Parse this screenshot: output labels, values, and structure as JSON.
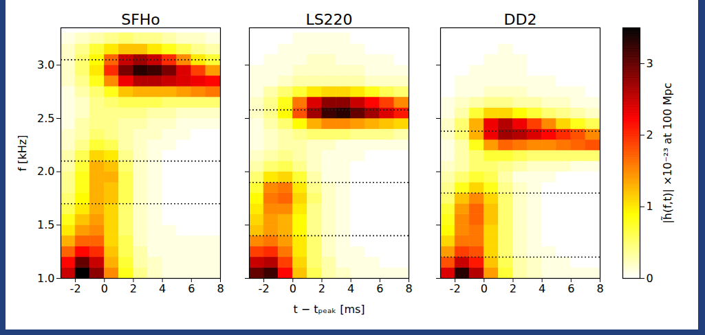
{
  "chart_data": {
    "type": "heatmap",
    "xlabel": "t − tₚₑₐₖ [ms]",
    "ylabel": "f [kHz]",
    "xlim": [
      -3,
      8
    ],
    "xticks": [
      -2,
      0,
      2,
      4,
      6,
      8
    ],
    "ylim": [
      1.0,
      3.35
    ],
    "yticks": [
      {
        "value": 1.0,
        "label": "1.0"
      },
      {
        "value": 1.5,
        "label": "1.5"
      },
      {
        "value": 2.0,
        "label": "2.0"
      },
      {
        "value": 2.5,
        "label": "2.5"
      },
      {
        "value": 3.0,
        "label": "3.0"
      }
    ],
    "line_style": "dotted",
    "x_edges": [
      -3,
      -2,
      -1,
      0,
      1,
      2,
      3,
      4,
      5,
      6,
      7,
      8
    ],
    "y_edges": [
      1.0,
      1.1,
      1.2,
      1.3,
      1.4,
      1.5,
      1.6,
      1.7,
      1.8,
      1.9,
      2.0,
      2.1,
      2.2,
      2.3,
      2.4,
      2.5,
      2.6,
      2.7,
      2.8,
      2.9,
      3.0,
      3.1,
      3.2,
      3.3
    ],
    "colorbar": {
      "label": "|h̃(f,t)| ×10⁻²³ at 100 Mpc",
      "lim": [
        0,
        3.5
      ],
      "ticks": [
        0,
        1,
        2,
        3
      ]
    },
    "panels": [
      {
        "title": "SFHo",
        "dotted_lines": [
          3.05,
          2.1,
          1.7
        ],
        "cells": [
          [
            2.5,
            3.5,
            2.8,
            1.5,
            0.8,
            0.4,
            0.2,
            0.1,
            0.1,
            0.1,
            0.1
          ],
          [
            2.2,
            3.0,
            2.5,
            1.3,
            0.7,
            0.3,
            0.2,
            0.1,
            0.1,
            0.1,
            0.1
          ],
          [
            1.7,
            2.2,
            2.0,
            1.2,
            0.6,
            0.3,
            0.1,
            0.1,
            0.1,
            0.1,
            0.1
          ],
          [
            1.3,
            1.7,
            1.7,
            1.1,
            0.6,
            0.2,
            0.1,
            0.1,
            0.1,
            0.1,
            0.1
          ],
          [
            1.0,
            1.4,
            1.5,
            1.1,
            0.5,
            0.2,
            0.1,
            0.1,
            0,
            0,
            0
          ],
          [
            0.8,
            1.2,
            1.4,
            1.1,
            0.5,
            0.2,
            0.1,
            0,
            0,
            0,
            0
          ],
          [
            0.6,
            1.0,
            1.3,
            1.1,
            0.5,
            0.2,
            0.1,
            0,
            0,
            0,
            0
          ],
          [
            0.5,
            0.9,
            1.3,
            1.2,
            0.6,
            0.2,
            0.1,
            0,
            0,
            0,
            0
          ],
          [
            0.4,
            0.8,
            1.3,
            1.2,
            0.6,
            0.2,
            0.1,
            0,
            0,
            0,
            0
          ],
          [
            0.4,
            0.8,
            1.3,
            1.3,
            0.6,
            0.2,
            0.1,
            0,
            0,
            0,
            0
          ],
          [
            0.3,
            0.7,
            1.3,
            1.2,
            0.5,
            0.2,
            0.1,
            0,
            0,
            0,
            0
          ],
          [
            0.3,
            0.6,
            1.1,
            1.0,
            0.4,
            0.2,
            0.1,
            0,
            0,
            0,
            0
          ],
          [
            0.2,
            0.4,
            0.7,
            0.6,
            0.3,
            0.2,
            0.1,
            0.1,
            0,
            0,
            0
          ],
          [
            0.2,
            0.3,
            0.5,
            0.4,
            0.3,
            0.2,
            0.2,
            0.1,
            0.1,
            0,
            0
          ],
          [
            0.1,
            0.3,
            0.4,
            0.4,
            0.3,
            0.3,
            0.2,
            0.2,
            0.1,
            0.1,
            0.1
          ],
          [
            0.1,
            0.2,
            0.4,
            0.4,
            0.4,
            0.4,
            0.3,
            0.3,
            0.2,
            0.2,
            0.2
          ],
          [
            0.1,
            0.2,
            0.4,
            0.5,
            0.6,
            0.6,
            0.6,
            0.5,
            0.5,
            0.5,
            0.5
          ],
          [
            0.1,
            0.3,
            0.5,
            0.8,
            1.2,
            1.3,
            1.3,
            1.3,
            1.4,
            1.5,
            1.6
          ],
          [
            0.2,
            0.4,
            0.8,
            1.5,
            2.3,
            2.6,
            2.6,
            2.5,
            2.4,
            2.3,
            2.2
          ],
          [
            0.2,
            0.5,
            1.0,
            2.0,
            2.9,
            3.3,
            3.2,
            2.9,
            2.4,
            1.9,
            1.4
          ],
          [
            0.2,
            0.5,
            0.9,
            1.7,
            2.5,
            2.7,
            2.5,
            2.0,
            1.5,
            1.0,
            0.7
          ],
          [
            0.2,
            0.4,
            0.7,
            1.0,
            1.2,
            1.2,
            1.0,
            0.8,
            0.6,
            0.4,
            0.3
          ],
          [
            0.1,
            0.2,
            0.3,
            0.4,
            0.5,
            0.4,
            0.4,
            0.3,
            0.2,
            0.2,
            0.1
          ]
        ]
      },
      {
        "title": "LS220",
        "dotted_lines": [
          2.58,
          1.9,
          1.4
        ],
        "cells": [
          [
            3.0,
            3.2,
            2.2,
            1.2,
            0.6,
            0.3,
            0.2,
            0.1,
            0.1,
            0.1,
            0.1
          ],
          [
            2.5,
            2.6,
            1.9,
            1.1,
            0.5,
            0.3,
            0.1,
            0.1,
            0.1,
            0,
            0
          ],
          [
            1.9,
            2.0,
            1.6,
            1.0,
            0.5,
            0.2,
            0.1,
            0.1,
            0,
            0,
            0
          ],
          [
            1.5,
            1.6,
            1.4,
            1.0,
            0.5,
            0.2,
            0.1,
            0,
            0,
            0,
            0
          ],
          [
            1.2,
            1.4,
            1.3,
            0.9,
            0.4,
            0.2,
            0.1,
            0,
            0,
            0,
            0
          ],
          [
            1.1,
            1.4,
            1.3,
            0.9,
            0.4,
            0.2,
            0.1,
            0,
            0,
            0,
            0
          ],
          [
            1.0,
            1.5,
            1.5,
            1.0,
            0.4,
            0.2,
            0.1,
            0,
            0,
            0,
            0
          ],
          [
            0.9,
            1.6,
            1.7,
            1.1,
            0.5,
            0.2,
            0.1,
            0,
            0,
            0,
            0
          ],
          [
            0.7,
            1.5,
            1.6,
            1.0,
            0.4,
            0.2,
            0.1,
            0,
            0,
            0,
            0
          ],
          [
            0.5,
            1.0,
            1.1,
            0.7,
            0.3,
            0.1,
            0.1,
            0,
            0,
            0,
            0
          ],
          [
            0.3,
            0.5,
            0.6,
            0.4,
            0.2,
            0.1,
            0.1,
            0,
            0,
            0,
            0
          ],
          [
            0.2,
            0.3,
            0.4,
            0.3,
            0.2,
            0.1,
            0.1,
            0.1,
            0,
            0,
            0
          ],
          [
            0.1,
            0.2,
            0.3,
            0.3,
            0.2,
            0.2,
            0.1,
            0.1,
            0.1,
            0.1,
            0.1
          ],
          [
            0.1,
            0.2,
            0.3,
            0.4,
            0.5,
            0.5,
            0.5,
            0.4,
            0.4,
            0.4,
            0.3
          ],
          [
            0.1,
            0.3,
            0.5,
            0.9,
            1.3,
            1.5,
            1.5,
            1.4,
            1.3,
            1.2,
            1.1
          ],
          [
            0.2,
            0.4,
            0.9,
            1.8,
            2.7,
            3.2,
            3.3,
            3.0,
            2.7,
            2.4,
            2.1
          ],
          [
            0.2,
            0.4,
            0.8,
            1.6,
            2.4,
            2.8,
            2.8,
            2.5,
            2.2,
            1.9,
            1.5
          ],
          [
            0.1,
            0.3,
            0.5,
            0.7,
            1.0,
            1.1,
            1.1,
            1.0,
            0.8,
            0.6,
            0.5
          ],
          [
            0.1,
            0.1,
            0.2,
            0.3,
            0.3,
            0.3,
            0.3,
            0.3,
            0.2,
            0.2,
            0.2
          ],
          [
            0.1,
            0.1,
            0.1,
            0.2,
            0.2,
            0.2,
            0.2,
            0.2,
            0.1,
            0.1,
            0.1
          ],
          [
            0,
            0.1,
            0.1,
            0.1,
            0.2,
            0.2,
            0.1,
            0.1,
            0.1,
            0.1,
            0
          ],
          [
            0,
            0,
            0.1,
            0.1,
            0.1,
            0.1,
            0.1,
            0.1,
            0,
            0,
            0
          ],
          [
            0,
            0,
            0,
            0.1,
            0.1,
            0.1,
            0.1,
            0,
            0,
            0,
            0
          ]
        ]
      },
      {
        "title": "DD2",
        "dotted_lines": [
          2.38,
          1.8,
          1.2
        ],
        "cells": [
          [
            2.4,
            3.3,
            2.6,
            1.4,
            0.7,
            0.3,
            0.2,
            0.1,
            0.1,
            0.1,
            0.1
          ],
          [
            1.8,
            2.5,
            2.1,
            1.2,
            0.6,
            0.3,
            0.2,
            0.1,
            0.1,
            0,
            0
          ],
          [
            1.4,
            1.9,
            1.8,
            1.1,
            0.5,
            0.2,
            0.1,
            0.1,
            0,
            0,
            0
          ],
          [
            1.1,
            1.6,
            1.6,
            1.1,
            0.5,
            0.2,
            0.1,
            0,
            0,
            0,
            0
          ],
          [
            0.9,
            1.5,
            1.6,
            1.1,
            0.5,
            0.2,
            0.1,
            0,
            0,
            0,
            0
          ],
          [
            0.8,
            1.5,
            1.7,
            1.2,
            0.5,
            0.2,
            0.1,
            0,
            0,
            0,
            0
          ],
          [
            0.7,
            1.4,
            1.7,
            1.2,
            0.5,
            0.2,
            0.1,
            0,
            0,
            0,
            0
          ],
          [
            0.5,
            1.2,
            1.5,
            1.1,
            0.5,
            0.2,
            0.1,
            0,
            0,
            0,
            0
          ],
          [
            0.4,
            0.8,
            1.1,
            0.8,
            0.4,
            0.2,
            0.1,
            0,
            0,
            0,
            0
          ],
          [
            0.3,
            0.5,
            0.7,
            0.6,
            0.3,
            0.1,
            0.1,
            0.1,
            0,
            0,
            0
          ],
          [
            0.2,
            0.3,
            0.5,
            0.5,
            0.4,
            0.3,
            0.2,
            0.2,
            0.2,
            0.1,
            0.1
          ],
          [
            0.1,
            0.3,
            0.5,
            0.7,
            0.7,
            0.6,
            0.5,
            0.5,
            0.5,
            0.5,
            0.5
          ],
          [
            0.1,
            0.3,
            0.8,
            1.4,
            1.7,
            1.6,
            1.5,
            1.5,
            1.6,
            1.7,
            1.8
          ],
          [
            0.2,
            0.5,
            1.3,
            2.3,
            2.7,
            2.6,
            2.4,
            2.2,
            2.0,
            1.8,
            1.5
          ],
          [
            0.2,
            0.5,
            1.3,
            2.3,
            2.6,
            2.3,
            1.9,
            1.5,
            1.1,
            0.8,
            0.6
          ],
          [
            0.1,
            0.3,
            0.7,
            1.1,
            1.1,
            0.9,
            0.7,
            0.5,
            0.4,
            0.3,
            0.2
          ],
          [
            0.1,
            0.2,
            0.3,
            0.4,
            0.4,
            0.3,
            0.3,
            0.2,
            0.2,
            0.1,
            0.1
          ],
          [
            0,
            0.1,
            0.1,
            0.2,
            0.2,
            0.2,
            0.1,
            0.1,
            0.1,
            0.1,
            0
          ],
          [
            0,
            0.1,
            0.1,
            0.1,
            0.1,
            0.1,
            0.1,
            0.1,
            0,
            0,
            0
          ],
          [
            0,
            0,
            0.1,
            0.1,
            0.1,
            0.1,
            0,
            0,
            0,
            0,
            0
          ],
          [
            0,
            0,
            0,
            0.1,
            0.1,
            0.1,
            0,
            0,
            0,
            0,
            0
          ],
          [
            0,
            0,
            0,
            0,
            0.1,
            0,
            0,
            0,
            0,
            0,
            0
          ],
          [
            0,
            0,
            0,
            0,
            0,
            0,
            0,
            0,
            0,
            0,
            0
          ]
        ]
      }
    ]
  }
}
